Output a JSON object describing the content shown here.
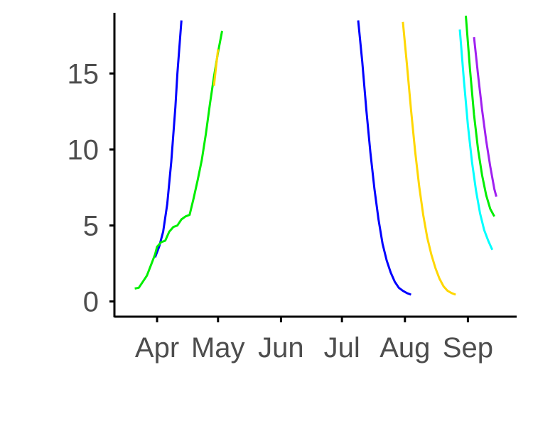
{
  "chart_data": {
    "type": "line",
    "title": "",
    "xlabel": "",
    "ylabel": "",
    "x_axis": {
      "type": "date",
      "range": [
        "2021-03-11",
        "2021-09-25"
      ],
      "ticks": [
        "2021-04-01",
        "2021-05-01",
        "2021-06-01",
        "2021-07-01",
        "2021-08-01",
        "2021-09-01"
      ],
      "tick_labels": [
        "Apr",
        "May",
        "Jun",
        "Jul",
        "Aug",
        "Sep"
      ]
    },
    "y_axis": {
      "range": [
        -1,
        19
      ],
      "ticks": [
        0,
        5,
        10,
        15
      ],
      "tick_labels": [
        "0",
        "5",
        "10",
        "15"
      ]
    },
    "grid": false,
    "legend": "none",
    "series": [
      {
        "color": "#0000ff",
        "points": [
          [
            "2021-03-31",
            2.9
          ],
          [
            "2021-04-02",
            3.6
          ],
          [
            "2021-04-04",
            4.6
          ],
          [
            "2021-04-06",
            6.4
          ],
          [
            "2021-04-08",
            9.2
          ],
          [
            "2021-04-10",
            12.8
          ],
          [
            "2021-04-11",
            15.0
          ],
          [
            "2021-04-13",
            18.5
          ]
        ]
      },
      {
        "color": "#00ee00",
        "points": [
          [
            "2021-03-21",
            0.85
          ],
          [
            "2021-03-23",
            0.9
          ],
          [
            "2021-03-25",
            1.3
          ],
          [
            "2021-03-27",
            1.7
          ],
          [
            "2021-03-29",
            2.4
          ],
          [
            "2021-03-31",
            3.1
          ],
          [
            "2021-04-01",
            3.6
          ],
          [
            "2021-04-03",
            3.9
          ],
          [
            "2021-04-05",
            4.0
          ],
          [
            "2021-04-07",
            4.6
          ],
          [
            "2021-04-09",
            4.9
          ],
          [
            "2021-04-11",
            5.0
          ],
          [
            "2021-04-13",
            5.4
          ],
          [
            "2021-04-15",
            5.6
          ],
          [
            "2021-04-17",
            5.7
          ],
          [
            "2021-04-19",
            6.8
          ],
          [
            "2021-04-21",
            8.0
          ],
          [
            "2021-04-23",
            9.3
          ],
          [
            "2021-04-25",
            11.0
          ],
          [
            "2021-04-27",
            13.0
          ],
          [
            "2021-04-29",
            14.8
          ],
          [
            "2021-05-01",
            16.4
          ],
          [
            "2021-05-03",
            17.8
          ]
        ]
      },
      {
        "color": "#ffd700",
        "points": [
          [
            "2021-04-29",
            14.2
          ],
          [
            "2021-04-30",
            15.4
          ],
          [
            "2021-05-01",
            16.6
          ]
        ]
      },
      {
        "color": "#0000ff",
        "points": [
          [
            "2021-07-09",
            18.5
          ],
          [
            "2021-07-11",
            15.8
          ],
          [
            "2021-07-13",
            12.6
          ],
          [
            "2021-07-15",
            9.8
          ],
          [
            "2021-07-17",
            7.4
          ],
          [
            "2021-07-19",
            5.4
          ],
          [
            "2021-07-21",
            3.8
          ],
          [
            "2021-07-23",
            2.7
          ],
          [
            "2021-07-25",
            1.9
          ],
          [
            "2021-07-27",
            1.3
          ],
          [
            "2021-07-29",
            0.9
          ],
          [
            "2021-07-31",
            0.7
          ],
          [
            "2021-08-02",
            0.55
          ],
          [
            "2021-08-04",
            0.45
          ]
        ]
      },
      {
        "color": "#ffd700",
        "points": [
          [
            "2021-07-31",
            18.4
          ],
          [
            "2021-08-02",
            15.6
          ],
          [
            "2021-08-04",
            12.6
          ],
          [
            "2021-08-06",
            9.9
          ],
          [
            "2021-08-08",
            7.6
          ],
          [
            "2021-08-10",
            5.7
          ],
          [
            "2021-08-12",
            4.2
          ],
          [
            "2021-08-14",
            3.1
          ],
          [
            "2021-08-16",
            2.2
          ],
          [
            "2021-08-18",
            1.5
          ],
          [
            "2021-08-20",
            1.0
          ],
          [
            "2021-08-22",
            0.7
          ],
          [
            "2021-08-24",
            0.55
          ],
          [
            "2021-08-26",
            0.45
          ]
        ]
      },
      {
        "color": "#00ffff",
        "points": [
          [
            "2021-08-28",
            17.9
          ],
          [
            "2021-08-30",
            14.6
          ],
          [
            "2021-09-01",
            11.6
          ],
          [
            "2021-09-03",
            9.2
          ],
          [
            "2021-09-05",
            7.3
          ],
          [
            "2021-09-07",
            5.8
          ],
          [
            "2021-09-09",
            4.7
          ],
          [
            "2021-09-11",
            4.0
          ],
          [
            "2021-09-13",
            3.4
          ]
        ]
      },
      {
        "color": "#00ee00",
        "points": [
          [
            "2021-08-31",
            18.8
          ],
          [
            "2021-09-02",
            15.3
          ],
          [
            "2021-09-04",
            12.3
          ],
          [
            "2021-09-06",
            10.0
          ],
          [
            "2021-09-08",
            8.3
          ],
          [
            "2021-09-10",
            7.0
          ],
          [
            "2021-09-12",
            6.1
          ],
          [
            "2021-09-14",
            5.6
          ]
        ]
      },
      {
        "color": "#a020f0",
        "points": [
          [
            "2021-09-04",
            17.4
          ],
          [
            "2021-09-06",
            14.9
          ],
          [
            "2021-09-08",
            12.6
          ],
          [
            "2021-09-10",
            10.6
          ],
          [
            "2021-09-12",
            8.9
          ],
          [
            "2021-09-14",
            7.4
          ],
          [
            "2021-09-15",
            6.9
          ]
        ]
      }
    ]
  }
}
